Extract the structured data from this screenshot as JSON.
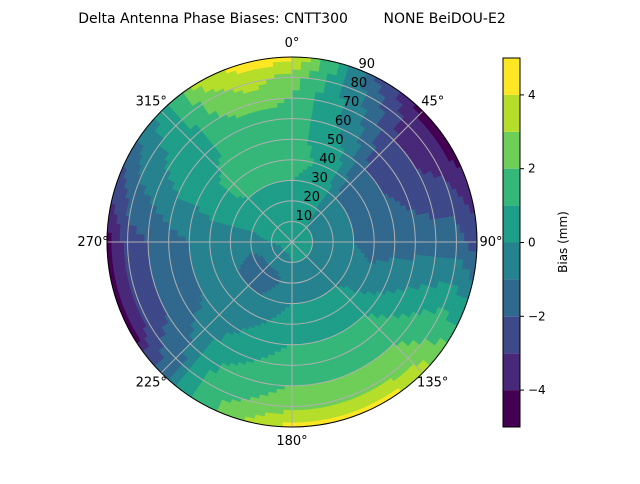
{
  "chart_data": {
    "type": "heatmap",
    "subtype": "polar-filled-contour",
    "title": "Delta Antenna Phase Biases: CNTT300        NONE BeiDOU-E2",
    "colorbar": {
      "label": "Bias (mm)",
      "range": [
        -5,
        5
      ],
      "levels": [
        -5,
        -4,
        -3,
        -2,
        -1,
        0,
        1,
        2,
        3,
        4,
        5
      ],
      "ticks": [
        4,
        2,
        0,
        -2,
        -4
      ],
      "tick_labels": [
        "4",
        "2",
        "0",
        "−2",
        "−4"
      ],
      "colormap": "viridis",
      "colors": [
        "#440154",
        "#482878",
        "#3e4989",
        "#31688e",
        "#26828e",
        "#1f9e89",
        "#35b779",
        "#6ece58",
        "#b5de2b",
        "#fde725"
      ]
    },
    "angular_axis": {
      "direction": "clockwise",
      "zero_location": "top",
      "ticks": [
        0,
        45,
        90,
        135,
        180,
        225,
        270,
        315
      ],
      "tick_labels": [
        "0°",
        "45°",
        "90°",
        "135°",
        "180°",
        "225°",
        "270°",
        "315°"
      ]
    },
    "radial_axis": {
      "range": [
        0,
        90
      ],
      "ticks": [
        10,
        20,
        30,
        40,
        50,
        60,
        70,
        80,
        90
      ],
      "tick_labels": [
        "10",
        "20",
        "30",
        "40",
        "50",
        "60",
        "70",
        "80",
        "90"
      ]
    },
    "grid": true,
    "field": {
      "azimuths": [
        0,
        30,
        45,
        60,
        90,
        120,
        135,
        150,
        180,
        210,
        225,
        240,
        270,
        300,
        315,
        330,
        345
      ],
      "radii": [
        0,
        20,
        40,
        60,
        80,
        90
      ],
      "values": [
        [
          0.5,
          0.5,
          1.5,
          1.5,
          2.5,
          4.5
        ],
        [
          0.5,
          0.5,
          0.5,
          -0.5,
          -1.5,
          -2.5
        ],
        [
          0.5,
          -0.5,
          -1.5,
          -2.5,
          -3.5,
          -4.5
        ],
        [
          0.5,
          -0.5,
          -1.5,
          -2.5,
          -3.5,
          -4.5
        ],
        [
          0.5,
          -0.5,
          -1.5,
          -1.5,
          -1.5,
          -2.5
        ],
        [
          0.5,
          -0.5,
          -0.5,
          0.5,
          1.5,
          1.5
        ],
        [
          0.5,
          -0.5,
          0.5,
          1.5,
          2.5,
          3.5
        ],
        [
          0.5,
          -0.5,
          0.5,
          1.5,
          2.5,
          4.5
        ],
        [
          0.5,
          -0.5,
          0.5,
          1.5,
          2.5,
          4.5
        ],
        [
          0.5,
          -1.5,
          -0.5,
          0.5,
          1.5,
          1.5
        ],
        [
          0.5,
          -1.5,
          -0.5,
          -0.5,
          -1.5,
          -1.5
        ],
        [
          0.5,
          -1.5,
          -0.5,
          -1.5,
          -2.5,
          -4.5
        ],
        [
          0.5,
          -0.5,
          -0.5,
          -1.5,
          -2.5,
          -4.5
        ],
        [
          0.5,
          0.5,
          0.5,
          0.5,
          -0.5,
          -1.5
        ],
        [
          0.5,
          0.5,
          1.5,
          0.5,
          0.5,
          0.5
        ],
        [
          0.5,
          0.5,
          1.5,
          1.5,
          2.5,
          3.5
        ],
        [
          0.5,
          0.5,
          1.5,
          1.5,
          3.5,
          4.5
        ]
      ]
    }
  }
}
